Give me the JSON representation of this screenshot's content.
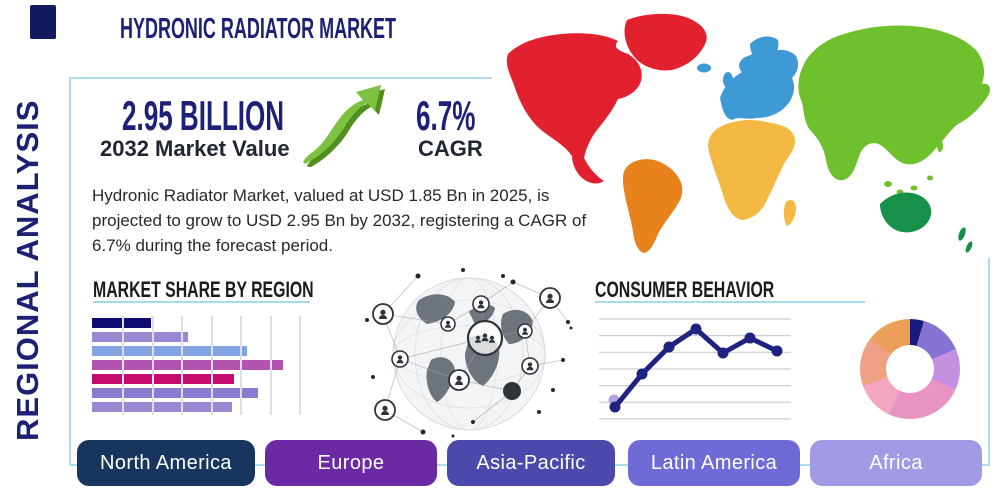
{
  "title": "HYDRONIC RADIATOR MARKET",
  "side_label": "REGIONAL ANALYSIS",
  "stats": {
    "market_value": {
      "value": "2.95 BILLION",
      "label": "2032 Market Value"
    },
    "cagr": {
      "value": "6.7%",
      "label": "CAGR"
    },
    "trend_icon": "growth-arrow-up-right",
    "trend_color": "#7cc142",
    "trend_shadow_color": "#4e8f1e"
  },
  "description": "Hydronic Radiator Market, valued at USD 1.85 Bn in 2025, is projected to grow to USD 2.95 Bn by 2032, registering a CAGR of 6.7% during the forecast period.",
  "sections": {
    "market_share": {
      "heading": "MARKET SHARE BY REGION"
    },
    "consumer_behavior": {
      "heading": "CONSUMER BEHAVIOR"
    }
  },
  "map": {
    "colors": {
      "north_america": "#e2212f",
      "south_america": "#e8821c",
      "europe": "#3e9ad5",
      "africa": "#f3b942",
      "asia": "#6fc02d",
      "oceania": "#17904a"
    }
  },
  "regions": [
    {
      "label": "North America",
      "color": "#17355d"
    },
    {
      "label": "Europe",
      "color": "#6b2aa4"
    },
    {
      "label": "Asia-Pacific",
      "color": "#4c49ad"
    },
    {
      "label": "Latin America",
      "color": "#6f6bd6"
    },
    {
      "label": "Africa",
      "color": "#a09be4"
    }
  ],
  "chart_data": [
    {
      "type": "bar",
      "title": "MARKET SHARE BY REGION",
      "orientation": "horizontal",
      "categories": [
        "",
        "",
        "",
        "",
        "",
        "",
        ""
      ],
      "values_pct_of_axis": [
        27,
        44,
        71,
        87,
        65,
        76,
        64
      ],
      "bar_colors": [
        "#0c0d6e",
        "#9b87d2",
        "#82a2e2",
        "#b253af",
        "#c50b6c",
        "#8a7bd0",
        "#9b87d2"
      ],
      "grid": "vertical-gridlines",
      "axis_labels": "none"
    },
    {
      "type": "line",
      "title": "CONSUMER BEHAVIOR",
      "x": [
        1,
        2,
        3,
        4,
        5,
        6,
        7
      ],
      "values": [
        12,
        45,
        72,
        90,
        66,
        81,
        68
      ],
      "ylim": [
        0,
        100
      ],
      "line_color": "#1e2380",
      "marker": "dot",
      "extra_marker_color": "#b4a3e0",
      "grid": "horizontal-gridlines",
      "axis_labels": "none"
    },
    {
      "type": "donut",
      "title": "regional-share-donut",
      "slices_deg": [
        16,
        50,
        48,
        91,
        45,
        57,
        53
      ],
      "slice_colors": [
        "#1a1b7e",
        "#8572d2",
        "#c490e0",
        "#e993c4",
        "#f2a6c2",
        "#f0a084",
        "#eba05a"
      ],
      "labels": "none"
    }
  ],
  "accent": {
    "frame_border": "#aedcee",
    "underline": "#a5dcec"
  }
}
